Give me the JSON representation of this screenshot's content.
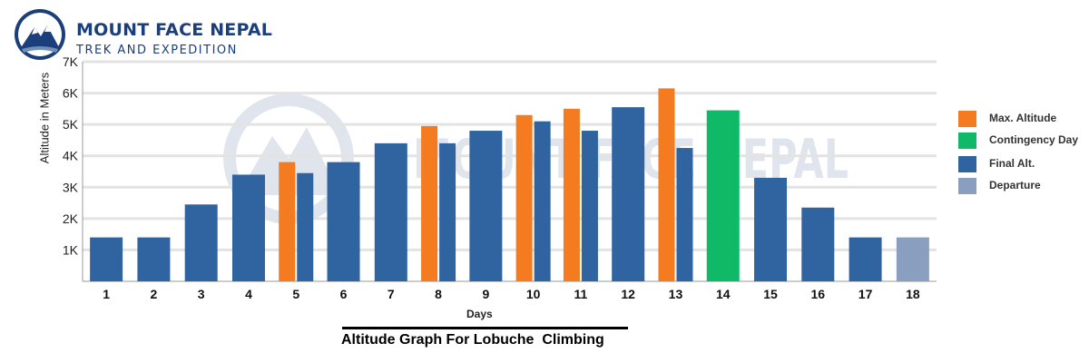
{
  "brand": {
    "name": "MOUNT FACE NEPAL",
    "tagline": "TREK AND EXPEDITION"
  },
  "chart_data": {
    "type": "bar",
    "title": "Altitude Graph For Lobuche  Climbing",
    "xlabel": "Days",
    "ylabel": "Altitude in Meters",
    "ylim": [
      0,
      7000
    ],
    "yticks": [
      "1K",
      "2K",
      "3K",
      "4K",
      "5K",
      "6K",
      "7K"
    ],
    "grid": true,
    "legend_position": "right",
    "categories": [
      "1",
      "2",
      "3",
      "4",
      "5",
      "6",
      "7",
      "8",
      "9",
      "10",
      "11",
      "12",
      "13",
      "14",
      "15",
      "16",
      "17",
      "18"
    ],
    "series": [
      {
        "name": "Max. Altitude",
        "color": "#f47b20",
        "values": [
          null,
          null,
          null,
          null,
          3800,
          null,
          null,
          4950,
          null,
          5300,
          5500,
          null,
          6150,
          null,
          null,
          null,
          null,
          null
        ]
      },
      {
        "name": "Contingency Day",
        "color": "#10b968",
        "values": [
          null,
          null,
          null,
          null,
          null,
          null,
          null,
          null,
          null,
          null,
          null,
          null,
          null,
          5450,
          null,
          null,
          null,
          null
        ]
      },
      {
        "name": "Final Alt.",
        "color": "#2f64a0",
        "values": [
          1400,
          1400,
          2450,
          3400,
          3450,
          3800,
          4400,
          4400,
          4800,
          5100,
          4800,
          5550,
          4250,
          null,
          3300,
          2350,
          1400,
          null
        ]
      },
      {
        "name": "Departure",
        "color": "#8a9fbf",
        "values": [
          null,
          null,
          null,
          null,
          null,
          null,
          null,
          null,
          null,
          null,
          null,
          null,
          null,
          null,
          null,
          null,
          null,
          1400
        ]
      }
    ]
  }
}
